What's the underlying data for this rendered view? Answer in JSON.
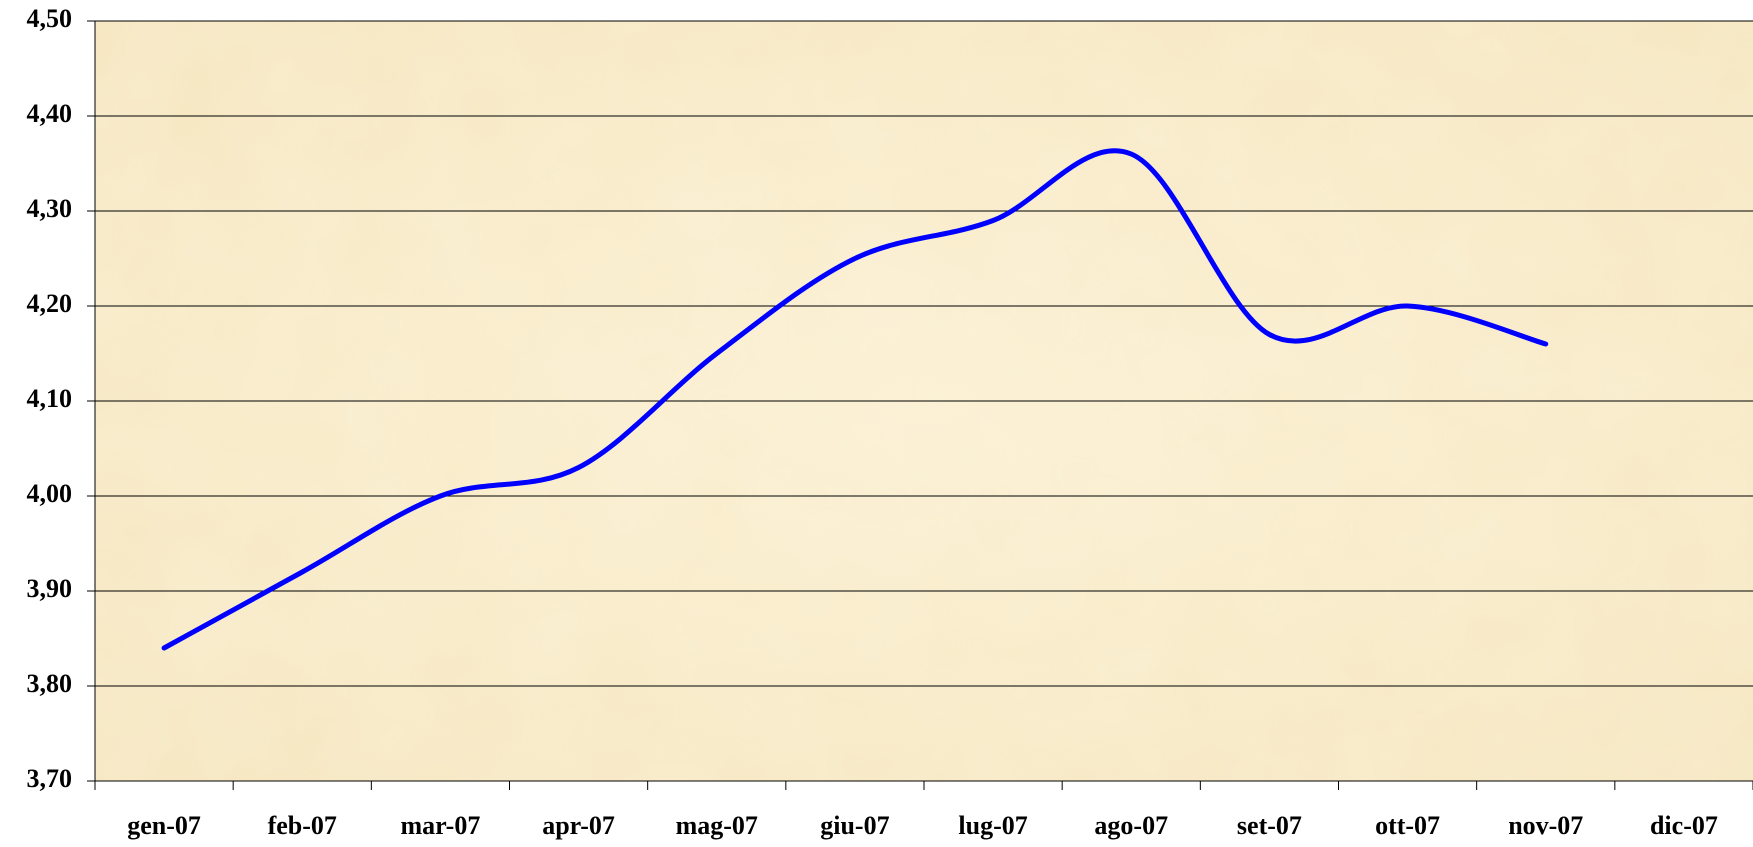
{
  "chart_data": {
    "type": "line",
    "categories": [
      "gen-07",
      "feb-07",
      "mar-07",
      "apr-07",
      "mag-07",
      "giu-07",
      "lug-07",
      "ago-07",
      "set-07",
      "ott-07",
      "nov-07",
      "dic-07"
    ],
    "values": [
      3.84,
      3.92,
      4.0,
      4.03,
      4.15,
      4.25,
      4.29,
      4.36,
      4.17,
      4.2,
      4.16,
      null
    ],
    "color": "#0000ff",
    "smooth": true,
    "ylim": [
      3.7,
      4.5
    ],
    "yticks": [
      {
        "value": 3.7,
        "label": "3,70"
      },
      {
        "value": 3.8,
        "label": "3,80"
      },
      {
        "value": 3.9,
        "label": "3,90"
      },
      {
        "value": 4.0,
        "label": "4,00"
      },
      {
        "value": 4.1,
        "label": "4,10"
      },
      {
        "value": 4.2,
        "label": "4,20"
      },
      {
        "value": 4.3,
        "label": "4,30"
      },
      {
        "value": 4.4,
        "label": "4,40"
      },
      {
        "value": 4.5,
        "label": "4,50"
      }
    ],
    "grid": true
  }
}
